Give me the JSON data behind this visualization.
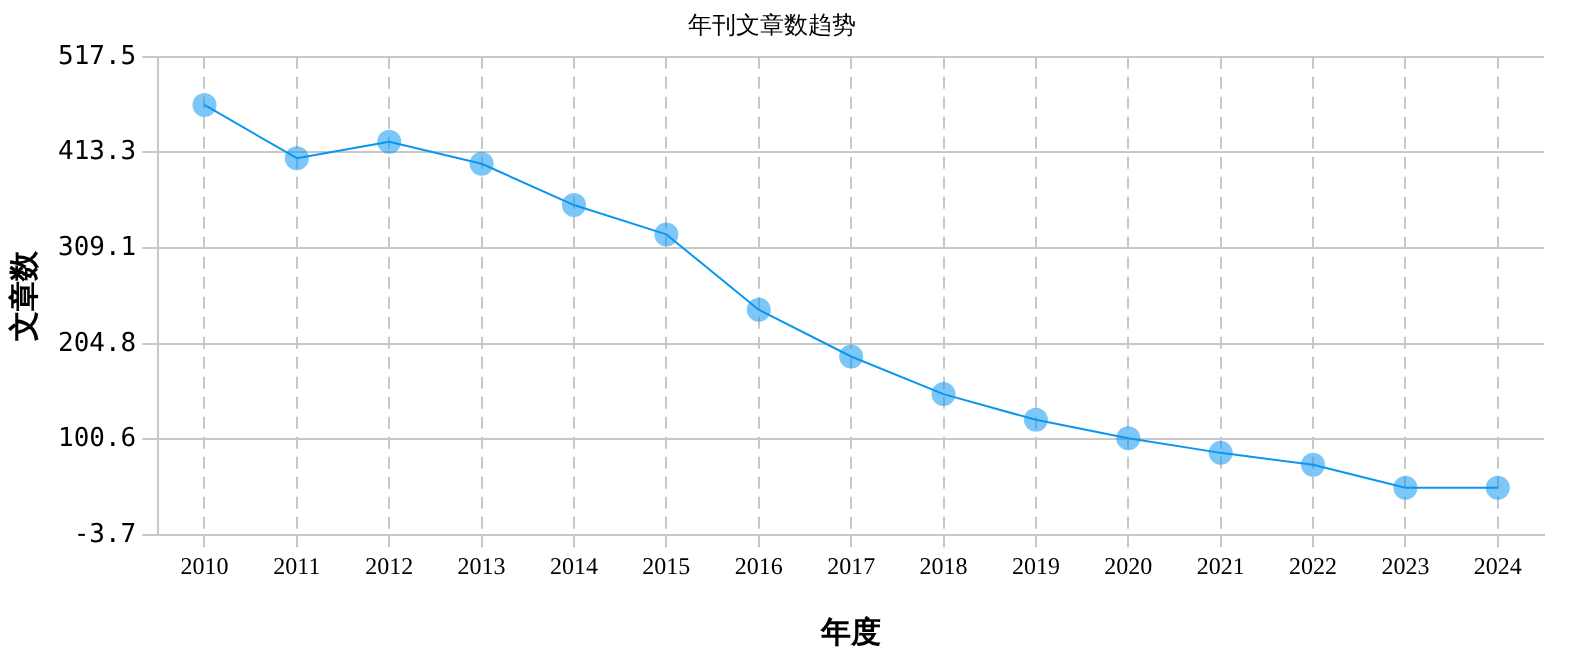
{
  "chart_data": {
    "type": "line",
    "title": "年刊文章数趋势",
    "xlabel": "年度",
    "ylabel": "文章数",
    "categories": [
      "2010",
      "2011",
      "2012",
      "2013",
      "2014",
      "2015",
      "2016",
      "2017",
      "2018",
      "2019",
      "2020",
      "2021",
      "2022",
      "2023",
      "2024"
    ],
    "series": [
      {
        "color": "#0a96f0",
        "values": [
          465,
          407,
          425,
          401,
          356,
          324,
          242,
          191,
          150,
          122,
          102,
          86,
          73,
          48,
          48
        ]
      }
    ],
    "ylim": [
      -3.7,
      517.5
    ],
    "yticks": [
      -3.7,
      100.6,
      204.8,
      309.1,
      413.3,
      517.5
    ],
    "grid": true,
    "legend": false,
    "marker": "circle",
    "line_style": "solid"
  }
}
